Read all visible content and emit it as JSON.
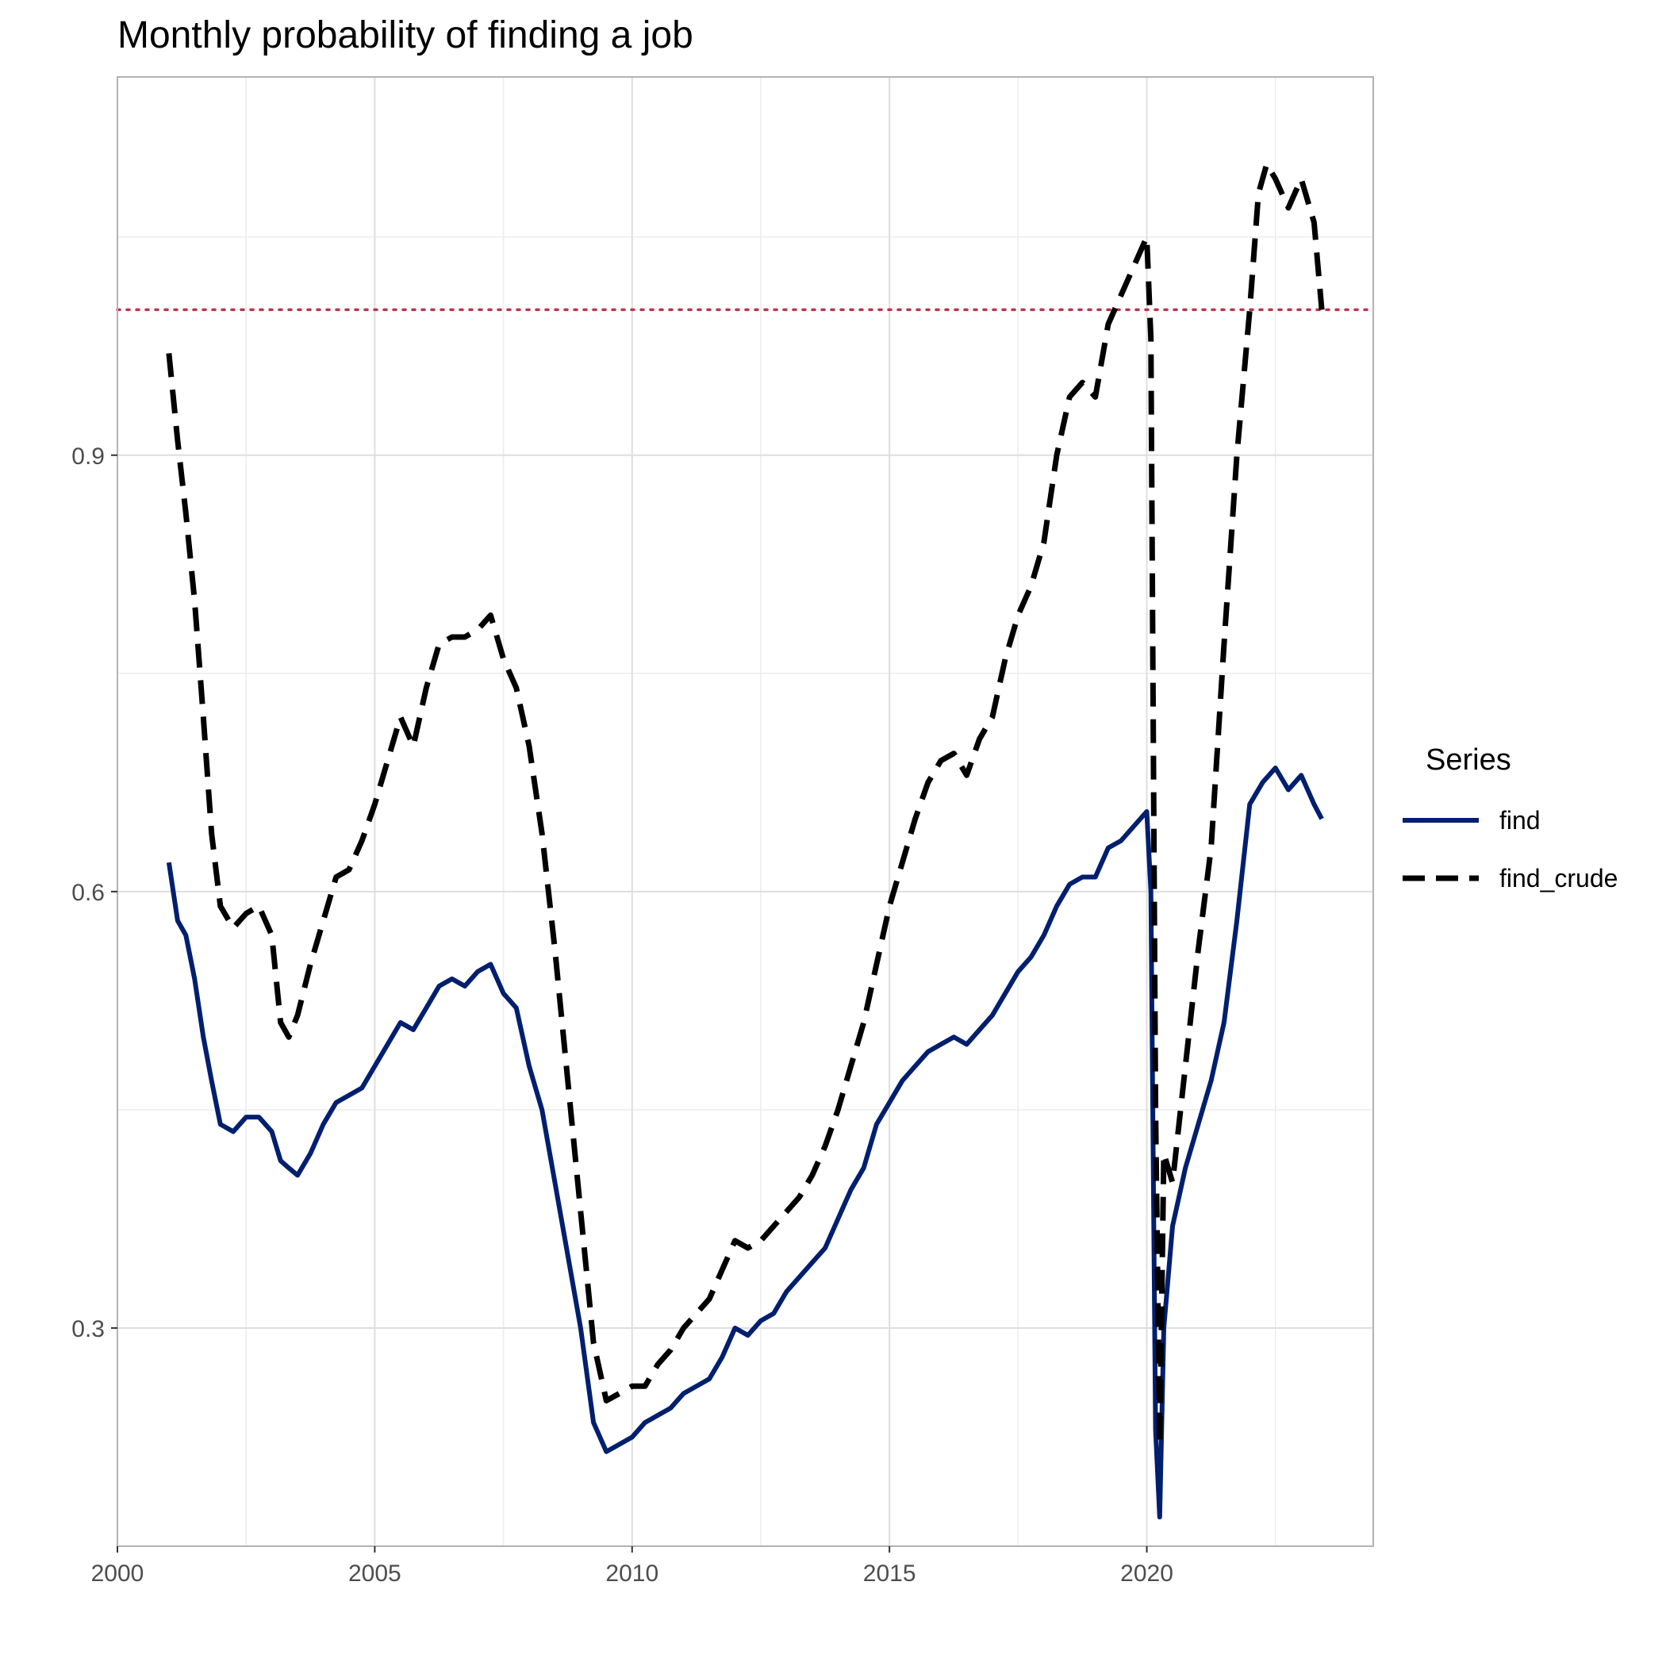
{
  "chart_data": {
    "type": "line",
    "title": "Monthly probability of finding a job",
    "xlabel": "",
    "ylabel": "",
    "xlim": [
      2000.0,
      2024.4
    ],
    "ylim": [
      0.15,
      1.16
    ],
    "x_ticks": [
      2000,
      2005,
      2010,
      2015,
      2020
    ],
    "x_tick_labels": [
      "2000",
      "2005",
      "2010",
      "2015",
      "2020"
    ],
    "x_minor_ticks": [
      2002.5,
      2007.5,
      2012.5,
      2017.5,
      2022.5
    ],
    "y_ticks": [
      0.3,
      0.6,
      0.9
    ],
    "y_tick_labels": [
      "0.3",
      "0.6",
      "0.9"
    ],
    "y_minor_ticks": [
      0.15,
      0.45,
      0.75,
      1.05
    ],
    "grid": true,
    "reference_line": {
      "y": 1.0,
      "style": "dotted",
      "color": "#C0334D"
    },
    "legend": {
      "title": "Series",
      "position": "right",
      "items": [
        {
          "label": "find",
          "color": "#001F6E",
          "dash": "solid"
        },
        {
          "label": "find_crude",
          "color": "#000000",
          "dash": "dashed"
        }
      ]
    },
    "series": [
      {
        "name": "find",
        "color": "#001F6E",
        "dash": "solid",
        "points": [
          [
            2001.0,
            0.62
          ],
          [
            2001.17,
            0.58
          ],
          [
            2001.33,
            0.57
          ],
          [
            2001.5,
            0.54
          ],
          [
            2001.67,
            0.5
          ],
          [
            2001.83,
            0.47
          ],
          [
            2002.0,
            0.44
          ],
          [
            2002.25,
            0.435
          ],
          [
            2002.5,
            0.445
          ],
          [
            2002.75,
            0.445
          ],
          [
            2003.0,
            0.435
          ],
          [
            2003.17,
            0.415
          ],
          [
            2003.33,
            0.41
          ],
          [
            2003.5,
            0.405
          ],
          [
            2003.75,
            0.42
          ],
          [
            2004.0,
            0.44
          ],
          [
            2004.25,
            0.455
          ],
          [
            2004.5,
            0.46
          ],
          [
            2004.75,
            0.465
          ],
          [
            2005.0,
            0.48
          ],
          [
            2005.25,
            0.495
          ],
          [
            2005.5,
            0.51
          ],
          [
            2005.75,
            0.505
          ],
          [
            2006.0,
            0.52
          ],
          [
            2006.25,
            0.535
          ],
          [
            2006.5,
            0.54
          ],
          [
            2006.75,
            0.535
          ],
          [
            2007.0,
            0.545
          ],
          [
            2007.25,
            0.55
          ],
          [
            2007.5,
            0.53
          ],
          [
            2007.75,
            0.52
          ],
          [
            2008.0,
            0.48
          ],
          [
            2008.25,
            0.45
          ],
          [
            2008.5,
            0.4
          ],
          [
            2008.75,
            0.35
          ],
          [
            2009.0,
            0.3
          ],
          [
            2009.25,
            0.235
          ],
          [
            2009.5,
            0.215
          ],
          [
            2009.75,
            0.22
          ],
          [
            2010.0,
            0.225
          ],
          [
            2010.25,
            0.235
          ],
          [
            2010.5,
            0.24
          ],
          [
            2010.75,
            0.245
          ],
          [
            2011.0,
            0.255
          ],
          [
            2011.25,
            0.26
          ],
          [
            2011.5,
            0.265
          ],
          [
            2011.75,
            0.28
          ],
          [
            2012.0,
            0.3
          ],
          [
            2012.25,
            0.295
          ],
          [
            2012.5,
            0.305
          ],
          [
            2012.75,
            0.31
          ],
          [
            2013.0,
            0.325
          ],
          [
            2013.25,
            0.335
          ],
          [
            2013.5,
            0.345
          ],
          [
            2013.75,
            0.355
          ],
          [
            2014.0,
            0.375
          ],
          [
            2014.25,
            0.395
          ],
          [
            2014.5,
            0.41
          ],
          [
            2014.75,
            0.44
          ],
          [
            2015.0,
            0.455
          ],
          [
            2015.25,
            0.47
          ],
          [
            2015.5,
            0.48
          ],
          [
            2015.75,
            0.49
          ],
          [
            2016.0,
            0.495
          ],
          [
            2016.25,
            0.5
          ],
          [
            2016.5,
            0.495
          ],
          [
            2016.75,
            0.505
          ],
          [
            2017.0,
            0.515
          ],
          [
            2017.25,
            0.53
          ],
          [
            2017.5,
            0.545
          ],
          [
            2017.75,
            0.555
          ],
          [
            2018.0,
            0.57
          ],
          [
            2018.25,
            0.59
          ],
          [
            2018.5,
            0.605
          ],
          [
            2018.75,
            0.61
          ],
          [
            2019.0,
            0.61
          ],
          [
            2019.25,
            0.63
          ],
          [
            2019.5,
            0.635
          ],
          [
            2019.75,
            0.645
          ],
          [
            2020.0,
            0.655
          ],
          [
            2020.08,
            0.6
          ],
          [
            2020.17,
            0.23
          ],
          [
            2020.25,
            0.17
          ],
          [
            2020.33,
            0.3
          ],
          [
            2020.5,
            0.37
          ],
          [
            2020.75,
            0.41
          ],
          [
            2021.0,
            0.44
          ],
          [
            2021.25,
            0.47
          ],
          [
            2021.5,
            0.51
          ],
          [
            2021.75,
            0.58
          ],
          [
            2022.0,
            0.66
          ],
          [
            2022.25,
            0.675
          ],
          [
            2022.5,
            0.685
          ],
          [
            2022.75,
            0.67
          ],
          [
            2023.0,
            0.68
          ],
          [
            2023.25,
            0.66
          ],
          [
            2023.4,
            0.65
          ]
        ]
      },
      {
        "name": "find_crude",
        "color": "#000000",
        "dash": "dashed",
        "points": [
          [
            2001.0,
            0.97
          ],
          [
            2001.17,
            0.91
          ],
          [
            2001.33,
            0.86
          ],
          [
            2001.5,
            0.8
          ],
          [
            2001.67,
            0.72
          ],
          [
            2001.83,
            0.64
          ],
          [
            2002.0,
            0.59
          ],
          [
            2002.25,
            0.575
          ],
          [
            2002.5,
            0.585
          ],
          [
            2002.75,
            0.59
          ],
          [
            2003.0,
            0.57
          ],
          [
            2003.17,
            0.51
          ],
          [
            2003.33,
            0.5
          ],
          [
            2003.5,
            0.515
          ],
          [
            2003.75,
            0.55
          ],
          [
            2004.0,
            0.58
          ],
          [
            2004.25,
            0.61
          ],
          [
            2004.5,
            0.615
          ],
          [
            2004.75,
            0.635
          ],
          [
            2005.0,
            0.66
          ],
          [
            2005.25,
            0.69
          ],
          [
            2005.5,
            0.72
          ],
          [
            2005.75,
            0.7
          ],
          [
            2006.0,
            0.74
          ],
          [
            2006.25,
            0.77
          ],
          [
            2006.5,
            0.775
          ],
          [
            2006.75,
            0.775
          ],
          [
            2007.0,
            0.78
          ],
          [
            2007.25,
            0.79
          ],
          [
            2007.5,
            0.76
          ],
          [
            2007.75,
            0.74
          ],
          [
            2008.0,
            0.7
          ],
          [
            2008.25,
            0.64
          ],
          [
            2008.5,
            0.56
          ],
          [
            2008.75,
            0.47
          ],
          [
            2009.0,
            0.38
          ],
          [
            2009.25,
            0.29
          ],
          [
            2009.5,
            0.25
          ],
          [
            2009.75,
            0.255
          ],
          [
            2010.0,
            0.26
          ],
          [
            2010.25,
            0.26
          ],
          [
            2010.5,
            0.275
          ],
          [
            2010.75,
            0.285
          ],
          [
            2011.0,
            0.3
          ],
          [
            2011.25,
            0.31
          ],
          [
            2011.5,
            0.32
          ],
          [
            2011.75,
            0.34
          ],
          [
            2012.0,
            0.36
          ],
          [
            2012.25,
            0.355
          ],
          [
            2012.5,
            0.36
          ],
          [
            2012.75,
            0.37
          ],
          [
            2013.0,
            0.38
          ],
          [
            2013.25,
            0.39
          ],
          [
            2013.5,
            0.405
          ],
          [
            2013.75,
            0.425
          ],
          [
            2014.0,
            0.45
          ],
          [
            2014.25,
            0.48
          ],
          [
            2014.5,
            0.51
          ],
          [
            2014.75,
            0.55
          ],
          [
            2015.0,
            0.59
          ],
          [
            2015.25,
            0.62
          ],
          [
            2015.5,
            0.65
          ],
          [
            2015.75,
            0.675
          ],
          [
            2016.0,
            0.69
          ],
          [
            2016.25,
            0.695
          ],
          [
            2016.5,
            0.68
          ],
          [
            2016.75,
            0.705
          ],
          [
            2017.0,
            0.72
          ],
          [
            2017.25,
            0.76
          ],
          [
            2017.5,
            0.79
          ],
          [
            2017.75,
            0.81
          ],
          [
            2018.0,
            0.84
          ],
          [
            2018.25,
            0.9
          ],
          [
            2018.5,
            0.94
          ],
          [
            2018.75,
            0.95
          ],
          [
            2019.0,
            0.94
          ],
          [
            2019.25,
            0.99
          ],
          [
            2019.5,
            1.01
          ],
          [
            2019.75,
            1.03
          ],
          [
            2020.0,
            1.05
          ],
          [
            2020.08,
            0.98
          ],
          [
            2020.17,
            0.45
          ],
          [
            2020.25,
            0.22
          ],
          [
            2020.33,
            0.42
          ],
          [
            2020.5,
            0.4
          ],
          [
            2020.75,
            0.48
          ],
          [
            2021.0,
            0.56
          ],
          [
            2021.25,
            0.63
          ],
          [
            2021.5,
            0.77
          ],
          [
            2021.75,
            0.9
          ],
          [
            2022.0,
            1.0
          ],
          [
            2022.17,
            1.08
          ],
          [
            2022.33,
            1.1
          ],
          [
            2022.5,
            1.09
          ],
          [
            2022.75,
            1.07
          ],
          [
            2023.0,
            1.09
          ],
          [
            2023.25,
            1.06
          ],
          [
            2023.4,
            1.0
          ]
        ]
      }
    ]
  }
}
